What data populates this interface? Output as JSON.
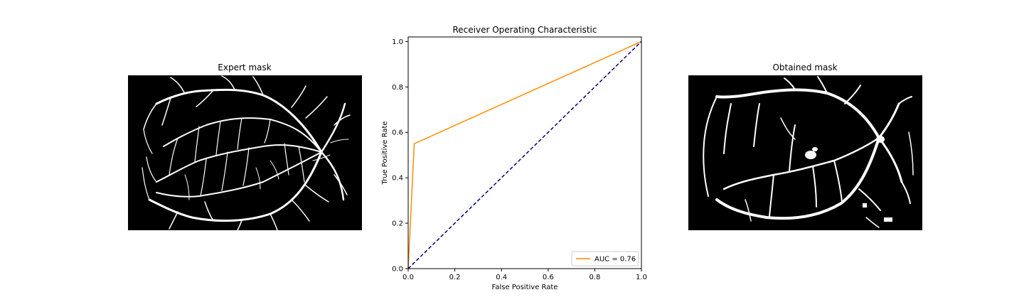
{
  "panels": {
    "left_title": "Expert mask",
    "center_title": "Receiver Operating Characteristic",
    "right_title": "Obtained mask"
  },
  "chart_data": {
    "type": "line",
    "title": "Receiver Operating Characteristic",
    "xlabel": "False Positive Rate",
    "ylabel": "True Positive Rate",
    "xlim": [
      0,
      1
    ],
    "ylim": [
      0,
      1.02
    ],
    "xticks": [
      0.0,
      0.2,
      0.4,
      0.6,
      0.8,
      1.0
    ],
    "yticks": [
      0.0,
      0.2,
      0.4,
      0.6,
      0.8,
      1.0
    ],
    "grid": false,
    "legend_position": "lower-right",
    "series": [
      {
        "name": "AUC = 0.76",
        "color": "#ff8c00",
        "style": "solid",
        "x": [
          0.0,
          0.026,
          1.0
        ],
        "y": [
          0.0,
          0.55,
          1.0
        ]
      },
      {
        "color": "#000080",
        "style": "dashed",
        "x": [
          0.0,
          1.0
        ],
        "y": [
          0.0,
          1.0
        ]
      }
    ]
  }
}
